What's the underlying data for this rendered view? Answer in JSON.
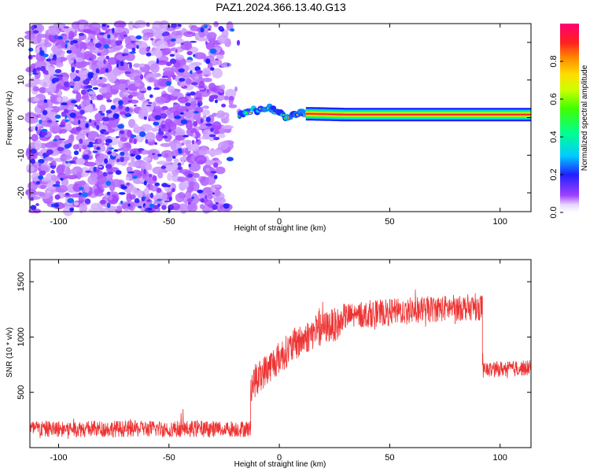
{
  "figure": {
    "title": "PAZ1.2024.366.13.40.G13"
  },
  "chart_data": [
    {
      "type": "heatmap",
      "xlabel": "Height of straight line (km)",
      "ylabel": "Frequency (Hz)",
      "xlim": [
        -113,
        114
      ],
      "ylim": [
        -25,
        25
      ],
      "xticks": [
        -100,
        -50,
        0,
        50,
        100
      ],
      "yticks": [
        -20,
        -10,
        0,
        10,
        20
      ],
      "colorbar": {
        "label": "Normalized spectral amplitude",
        "range": [
          0,
          1
        ],
        "ticks": [
          0.0,
          0.2,
          0.4,
          0.6,
          0.8
        ],
        "colormap": "gist_rainbow"
      },
      "regions": [
        {
          "name": "noise",
          "x": [
            -113,
            -18
          ],
          "freq": [
            -25,
            25
          ],
          "amplitude": [
            0.05,
            0.25
          ]
        },
        {
          "name": "signal-onset",
          "x": [
            -18,
            15
          ],
          "freq": [
            -1,
            4
          ],
          "amplitude": [
            0.3,
            0.85
          ]
        },
        {
          "name": "carrier-line",
          "x": [
            15,
            114
          ],
          "freq": [
            0,
            1.5
          ],
          "amplitude": [
            0.8,
            1.0
          ]
        }
      ],
      "carrier_trace": [
        [
          -20,
          0
        ],
        [
          -15,
          1.5
        ],
        [
          -10,
          2
        ],
        [
          -5,
          3
        ],
        [
          0,
          1
        ],
        [
          3,
          0
        ],
        [
          6,
          0.5
        ],
        [
          9,
          1.5
        ],
        [
          12,
          1
        ],
        [
          15,
          1
        ],
        [
          30,
          0.8
        ],
        [
          60,
          0.8
        ],
        [
          90,
          0.8
        ],
        [
          114,
          0.8
        ]
      ]
    },
    {
      "type": "line",
      "xlabel": "Height of straight line (km)",
      "ylabel": "SNR (10 * v/v)",
      "xlim": [
        -113,
        114
      ],
      "ylim": [
        0,
        1700
      ],
      "xticks": [
        -100,
        -50,
        0,
        50,
        100
      ],
      "yticks": [
        500,
        1000,
        1500
      ],
      "series": [
        {
          "color": "#ee3333",
          "segments": [
            {
              "x": [
                -113,
                -13
              ],
              "level_start": 170,
              "level_end": 170,
              "spread": 75
            },
            {
              "x": [
                -13,
                28
              ],
              "level_start": 560,
              "level_end": 1120,
              "spread": 150
            },
            {
              "x": [
                28,
                92
              ],
              "level_start": 1180,
              "level_end": 1270,
              "spread": 120
            },
            {
              "x": [
                92,
                114
              ],
              "level_start": 700,
              "level_end": 720,
              "spread": 70
            }
          ]
        }
      ]
    }
  ]
}
